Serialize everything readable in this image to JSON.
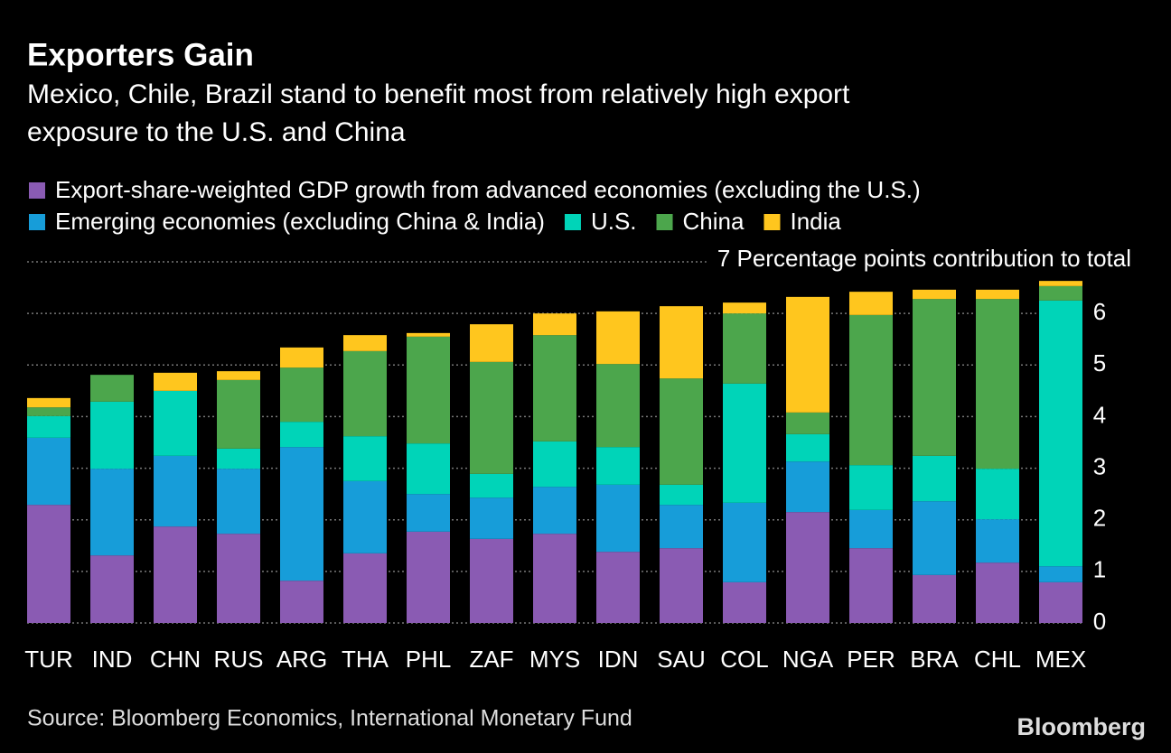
{
  "chart_data": {
    "type": "stacked-bar",
    "title": "Exporters Gain",
    "subtitle": [
      "Mexico, Chile, Brazil stand to benefit most from relatively high export",
      "exposure to the U.S. and China"
    ],
    "categories": [
      "TUR",
      "IND",
      "CHN",
      "RUS",
      "ARG",
      "THA",
      "PHL",
      "ZAF",
      "MYS",
      "IDN",
      "SAU",
      "COL",
      "NGA",
      "PER",
      "BRA",
      "CHL",
      "MEX"
    ],
    "series": [
      {
        "name": "Export-share-weighted GDP growth from advanced economies (excluding the U.S.)",
        "color": "#8a5bb3",
        "values": [
          2.29,
          1.31,
          1.87,
          1.73,
          0.82,
          1.35,
          1.77,
          1.63,
          1.73,
          1.38,
          1.45,
          0.79,
          2.15,
          1.45,
          0.93,
          1.17,
          0.79
        ]
      },
      {
        "name": "Emerging economies (excluding China & India)",
        "color": "#179dd9",
        "values": [
          1.3,
          1.68,
          1.37,
          1.26,
          2.59,
          1.4,
          0.73,
          0.8,
          0.91,
          1.3,
          0.84,
          1.54,
          0.98,
          0.74,
          1.43,
          0.84,
          0.31
        ]
      },
      {
        "name": "U.S.",
        "color": "#00d4b8",
        "values": [
          0.42,
          1.3,
          1.26,
          0.39,
          0.49,
          0.87,
          0.98,
          0.46,
          0.88,
          0.73,
          0.39,
          2.31,
          0.53,
          0.87,
          0.88,
          0.98,
          5.15
        ]
      },
      {
        "name": "China",
        "color": "#4ca64c",
        "values": [
          0.17,
          0.52,
          0,
          1.33,
          1.05,
          1.65,
          2.07,
          2.17,
          2.06,
          1.61,
          2.06,
          1.36,
          0.42,
          2.91,
          3.04,
          3.29,
          0.28
        ]
      },
      {
        "name": "India",
        "color": "#ffc61e",
        "values": [
          0.18,
          0,
          0.35,
          0.17,
          0.39,
          0.31,
          0.07,
          0.73,
          0.42,
          1.02,
          1.4,
          0.21,
          2.24,
          0.45,
          0.18,
          0.18,
          0.1
        ]
      }
    ],
    "ylim": [
      0,
      7
    ],
    "yticks": [
      0,
      1,
      2,
      3,
      4,
      5,
      6,
      {
        "value": 7,
        "label": "7 Percentage points contribution to total"
      }
    ],
    "grid": true,
    "source": "Source: Bloomberg Economics, International Monetary Fund",
    "logo": "Bloomberg"
  }
}
